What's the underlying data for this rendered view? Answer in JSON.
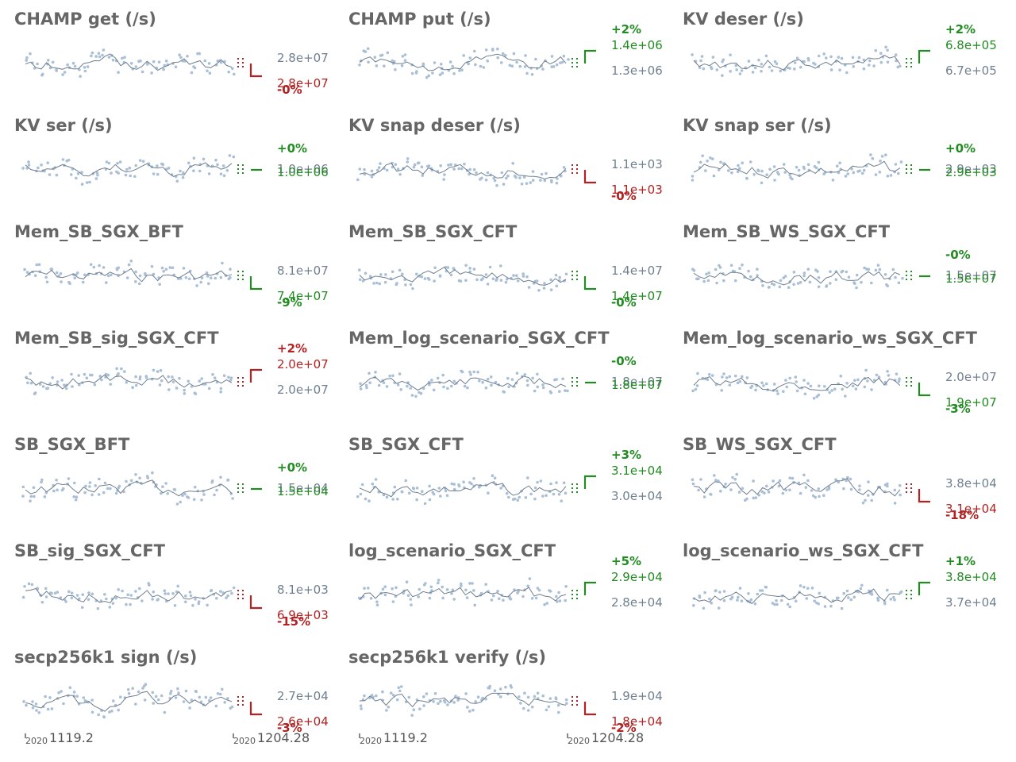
{
  "colors": {
    "title": "#666666",
    "line": "#6f7f8f",
    "dots": "#a9bfd6",
    "good": "#228b22",
    "bad": "#b22222",
    "baseline": "#708090"
  },
  "x_axis": {
    "start_year": "2020",
    "start_date": "1119.2",
    "end_year": "2020",
    "end_date": "1204.28"
  },
  "chart_data": [
    {
      "type": "line",
      "title": "CHAMP get (/s)",
      "baseline_label": "2.8e+07",
      "latest_label": "2.8e+07",
      "change": "-0%",
      "status": "bad",
      "direction": "down",
      "seed": 1
    },
    {
      "type": "line",
      "title": "CHAMP put (/s)",
      "baseline_label": "1.3e+06",
      "latest_label": "1.4e+06",
      "change": "+2%",
      "status": "good",
      "direction": "up",
      "seed": 2
    },
    {
      "type": "line",
      "title": "KV deser (/s)",
      "baseline_label": "6.7e+05",
      "latest_label": "6.8e+05",
      "change": "+2%",
      "status": "good",
      "direction": "up",
      "seed": 3
    },
    {
      "type": "line",
      "title": "KV ser (/s)",
      "baseline_label": "1.0e+06",
      "latest_label": "1.0e+06",
      "change": "+0%",
      "status": "good",
      "direction": "flat",
      "seed": 4
    },
    {
      "type": "line",
      "title": "KV snap deser (/s)",
      "baseline_label": "1.1e+03",
      "latest_label": "1.1e+03",
      "change": "-0%",
      "status": "bad",
      "direction": "down",
      "seed": 5
    },
    {
      "type": "line",
      "title": "KV snap ser (/s)",
      "baseline_label": "2.9e+03",
      "latest_label": "2.9e+03",
      "change": "+0%",
      "status": "good",
      "direction": "flat",
      "seed": 6
    },
    {
      "type": "line",
      "title": "Mem_SB_SGX_BFT",
      "baseline_label": "8.1e+07",
      "latest_label": "7.4e+07",
      "change": "-9%",
      "status": "good",
      "direction": "down",
      "seed": 7
    },
    {
      "type": "line",
      "title": "Mem_SB_SGX_CFT",
      "baseline_label": "1.4e+07",
      "latest_label": "1.4e+07",
      "change": "-0%",
      "status": "good",
      "direction": "down",
      "seed": 8
    },
    {
      "type": "line",
      "title": "Mem_SB_WS_SGX_CFT",
      "baseline_label": "1.5e+07",
      "latest_label": "1.5e+07",
      "change": "-0%",
      "status": "good",
      "direction": "flat",
      "seed": 9
    },
    {
      "type": "line",
      "title": "Mem_SB_sig_SGX_CFT",
      "baseline_label": "2.0e+07",
      "latest_label": "2.0e+07",
      "change": "+2%",
      "status": "bad",
      "direction": "up",
      "seed": 10
    },
    {
      "type": "line",
      "title": "Mem_log_scenario_SGX_CFT",
      "baseline_label": "1.8e+07",
      "latest_label": "1.8e+07",
      "change": "-0%",
      "status": "good",
      "direction": "flat",
      "seed": 11
    },
    {
      "type": "line",
      "title": "Mem_log_scenario_ws_SGX_CFT",
      "baseline_label": "2.0e+07",
      "latest_label": "1.9e+07",
      "change": "-3%",
      "status": "good",
      "direction": "down",
      "seed": 12
    },
    {
      "type": "line",
      "title": "SB_SGX_BFT",
      "baseline_label": "1.5e+04",
      "latest_label": "1.5e+04",
      "change": "+0%",
      "status": "good",
      "direction": "flat",
      "seed": 13
    },
    {
      "type": "line",
      "title": "SB_SGX_CFT",
      "baseline_label": "3.0e+04",
      "latest_label": "3.1e+04",
      "change": "+3%",
      "status": "good",
      "direction": "up",
      "seed": 14
    },
    {
      "type": "line",
      "title": "SB_WS_SGX_CFT",
      "baseline_label": "3.8e+04",
      "latest_label": "3.1e+04",
      "change": "-18%",
      "status": "bad",
      "direction": "down",
      "seed": 15
    },
    {
      "type": "line",
      "title": "SB_sig_SGX_CFT",
      "baseline_label": "8.1e+03",
      "latest_label": "6.9e+03",
      "change": "-15%",
      "status": "bad",
      "direction": "down",
      "seed": 16
    },
    {
      "type": "line",
      "title": "log_scenario_SGX_CFT",
      "baseline_label": "2.8e+04",
      "latest_label": "2.9e+04",
      "change": "+5%",
      "status": "good",
      "direction": "up",
      "seed": 17
    },
    {
      "type": "line",
      "title": "log_scenario_ws_SGX_CFT",
      "baseline_label": "3.7e+04",
      "latest_label": "3.8e+04",
      "change": "+1%",
      "status": "good",
      "direction": "up",
      "seed": 18
    },
    {
      "type": "line",
      "title": "secp256k1 sign (/s)",
      "baseline_label": "2.7e+04",
      "latest_label": "2.6e+04",
      "change": "-3%",
      "status": "bad",
      "direction": "down",
      "seed": 19
    },
    {
      "type": "line",
      "title": "secp256k1 verify (/s)",
      "baseline_label": "1.9e+04",
      "latest_label": "1.8e+04",
      "change": "-2%",
      "status": "bad",
      "direction": "down",
      "seed": 20
    }
  ]
}
